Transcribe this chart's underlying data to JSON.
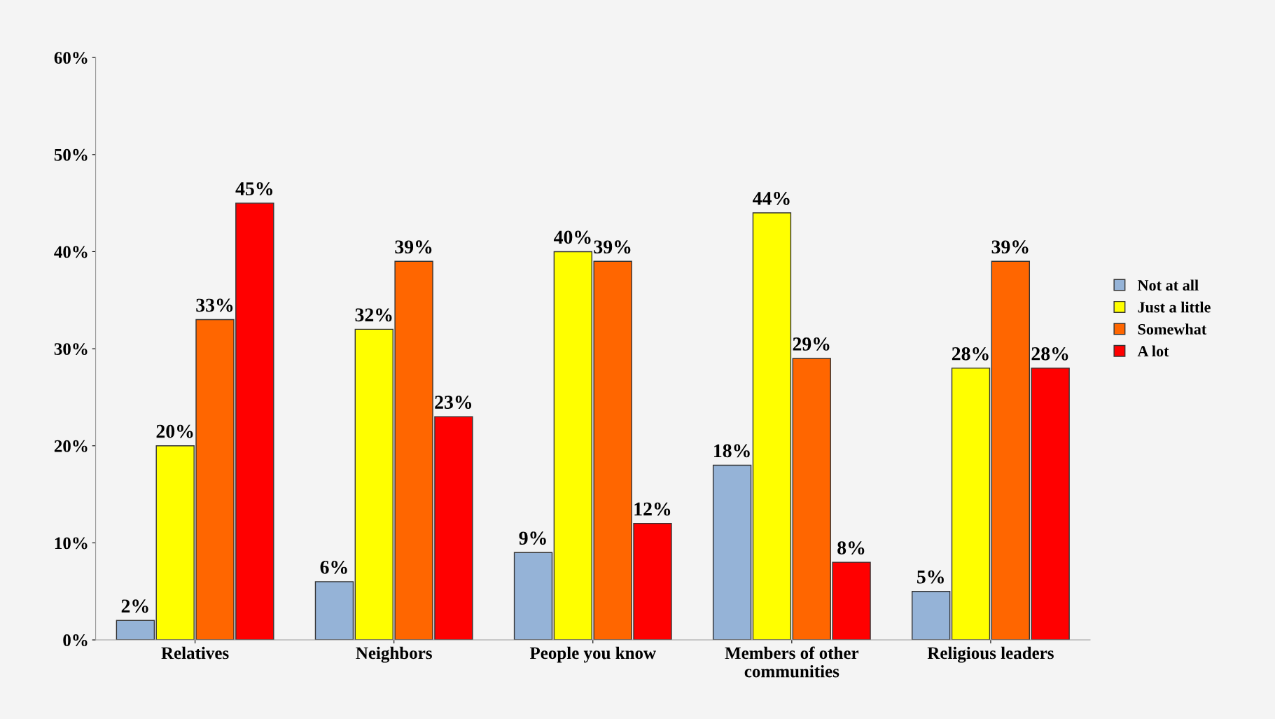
{
  "chart_data": {
    "type": "bar",
    "categories": [
      "Relatives",
      "Neighbors",
      "People you know",
      "Members of other\ncommunities",
      "Religious leaders"
    ],
    "series": [
      {
        "name": "Not at all",
        "color": "#95b3d7",
        "values": [
          2,
          6,
          9,
          18,
          5
        ],
        "value_labels": [
          "2%",
          "6%",
          "9%",
          "18%",
          "5%"
        ]
      },
      {
        "name": "Just a little",
        "color": "#ffff00",
        "values": [
          20,
          32,
          40,
          44,
          28
        ],
        "value_labels": [
          "20%",
          "32%",
          "40%",
          "44%",
          "28%"
        ]
      },
      {
        "name": "Somewhat",
        "color": "#ff6600",
        "values": [
          33,
          39,
          39,
          29,
          39
        ],
        "value_labels": [
          "33%",
          "39%",
          "39%",
          "29%",
          "39%"
        ]
      },
      {
        "name": "A lot",
        "color": "#ff0000",
        "values": [
          45,
          23,
          12,
          8,
          28
        ],
        "value_labels": [
          "45%",
          "23%",
          "12%",
          "8%",
          "28%"
        ]
      }
    ],
    "ylim": [
      0,
      60
    ],
    "yticks": [
      {
        "value": 0,
        "label": "0%"
      },
      {
        "value": 10,
        "label": "10%"
      },
      {
        "value": 20,
        "label": "20%"
      },
      {
        "value": 30,
        "label": "30%"
      },
      {
        "value": 40,
        "label": "40%"
      },
      {
        "value": 50,
        "label": "50%"
      },
      {
        "value": 60,
        "label": "60%"
      }
    ],
    "grid": false,
    "legend": "right"
  }
}
